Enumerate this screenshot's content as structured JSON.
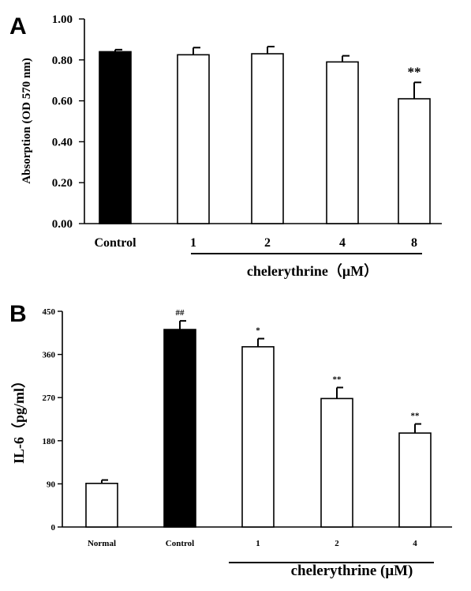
{
  "chart_data": [
    {
      "panel": "A",
      "type": "bar",
      "categories": [
        "Control",
        "1",
        "2",
        "4",
        "8"
      ],
      "values": [
        0.84,
        0.825,
        0.83,
        0.79,
        0.61
      ],
      "errors": [
        0.01,
        0.035,
        0.035,
        0.03,
        0.08
      ],
      "bar_fills": [
        "#000000",
        "#ffffff",
        "#ffffff",
        "#ffffff",
        "#ffffff"
      ],
      "significance": [
        "",
        "",
        "",
        "",
        "**"
      ],
      "ylabel": "Absorption (OD 570 nm)",
      "yticks": [
        "0.00",
        "0.20",
        "0.40",
        "0.60",
        "0.80",
        "1.00"
      ],
      "ylim": [
        0,
        1.0
      ],
      "group_label": "chelerythrine（μM）",
      "group_categories": [
        "1",
        "2",
        "4",
        "8"
      ]
    },
    {
      "panel": "B",
      "type": "bar",
      "categories": [
        "Normal",
        "Control",
        "1",
        "2",
        "4"
      ],
      "values": [
        91,
        412,
        376,
        268,
        196
      ],
      "errors": [
        7,
        18,
        17,
        23,
        19
      ],
      "bar_fills": [
        "#ffffff",
        "#000000",
        "#ffffff",
        "#ffffff",
        "#ffffff"
      ],
      "significance": [
        "",
        "##",
        "*",
        "**",
        "**"
      ],
      "ylabel": "IL-6（pg/ml）",
      "yticks": [
        "0",
        "90",
        "180",
        "270",
        "360",
        "450"
      ],
      "ylim": [
        0,
        450
      ],
      "group_label": "chelerythrine (μM)",
      "group_categories": [
        "1",
        "2",
        "4"
      ]
    }
  ]
}
